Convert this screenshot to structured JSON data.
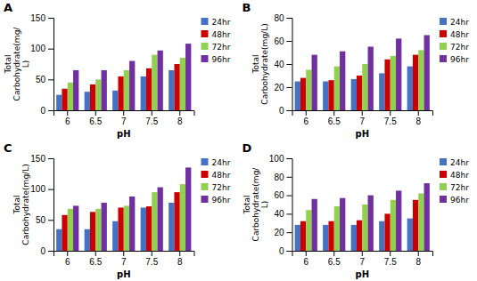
{
  "chart_data": [
    {
      "type": "bar",
      "title": "A",
      "xlabel": "pH",
      "ylabel": "Total\nCarbohydrate(mg/\nL)",
      "categories": [
        "6",
        "6.5",
        "7",
        "7.5",
        "8"
      ],
      "series": [
        {
          "name": "24hr",
          "color": "#4472C4",
          "values": [
            25,
            30,
            32,
            55,
            65
          ]
        },
        {
          "name": "48hr",
          "color": "#CC0000",
          "values": [
            35,
            42,
            55,
            68,
            75
          ]
        },
        {
          "name": "72hr",
          "color": "#92D050",
          "values": [
            45,
            50,
            65,
            90,
            85
          ]
        },
        {
          "name": "96hr",
          "color": "#7030A0",
          "values": [
            65,
            65,
            80,
            97,
            108
          ]
        }
      ],
      "ylim": [
        0,
        150
      ],
      "yticks": [
        0,
        50,
        100,
        150
      ],
      "grid": false,
      "legend": "right"
    },
    {
      "type": "bar",
      "title": "B",
      "xlabel": "pH",
      "ylabel": "Total\nCarbohydrate(mg/L)",
      "categories": [
        "6",
        "6.5",
        "7",
        "7.5",
        "8"
      ],
      "series": [
        {
          "name": "24hr",
          "color": "#4472C4",
          "values": [
            25,
            25,
            27,
            32,
            38
          ]
        },
        {
          "name": "48hr",
          "color": "#CC0000",
          "values": [
            28,
            26,
            30,
            44,
            48
          ]
        },
        {
          "name": "72hr",
          "color": "#92D050",
          "values": [
            35,
            38,
            40,
            47,
            52
          ]
        },
        {
          "name": "96hr",
          "color": "#7030A0",
          "values": [
            48,
            51,
            55,
            62,
            65
          ]
        }
      ],
      "ylim": [
        0,
        80
      ],
      "yticks": [
        0,
        20,
        40,
        60,
        80
      ],
      "grid": false,
      "legend": "right"
    },
    {
      "type": "bar",
      "title": "C",
      "xlabel": "pH",
      "ylabel": "Total\nCarbohydrate(mg/L)",
      "categories": [
        "6",
        "6.5",
        "7",
        "7.5",
        "8"
      ],
      "series": [
        {
          "name": "24hr",
          "color": "#4472C4",
          "values": [
            35,
            35,
            48,
            70,
            78
          ]
        },
        {
          "name": "48hr",
          "color": "#CC0000",
          "values": [
            58,
            63,
            70,
            72,
            95
          ]
        },
        {
          "name": "72hr",
          "color": "#92D050",
          "values": [
            68,
            68,
            73,
            95,
            108
          ]
        },
        {
          "name": "96hr",
          "color": "#7030A0",
          "values": [
            73,
            78,
            88,
            103,
            135
          ]
        }
      ],
      "ylim": [
        0,
        150
      ],
      "yticks": [
        0,
        50,
        100,
        150
      ],
      "grid": false,
      "legend": "right"
    },
    {
      "type": "bar",
      "title": "D",
      "xlabel": "pH",
      "ylabel": "Total\nCarbohydrate(mg/\nL)",
      "categories": [
        "6",
        "6.5",
        "7",
        "7.5",
        "8"
      ],
      "series": [
        {
          "name": "24hr",
          "color": "#4472C4",
          "values": [
            28,
            28,
            28,
            32,
            35
          ]
        },
        {
          "name": "48hr",
          "color": "#CC0000",
          "values": [
            32,
            32,
            33,
            40,
            55
          ]
        },
        {
          "name": "72hr",
          "color": "#92D050",
          "values": [
            44,
            48,
            50,
            55,
            62
          ]
        },
        {
          "name": "96hr",
          "color": "#7030A0",
          "values": [
            56,
            57,
            60,
            65,
            73
          ]
        }
      ],
      "ylim": [
        0,
        100
      ],
      "yticks": [
        0,
        20,
        40,
        60,
        80,
        100
      ],
      "grid": false,
      "legend": "right"
    }
  ]
}
